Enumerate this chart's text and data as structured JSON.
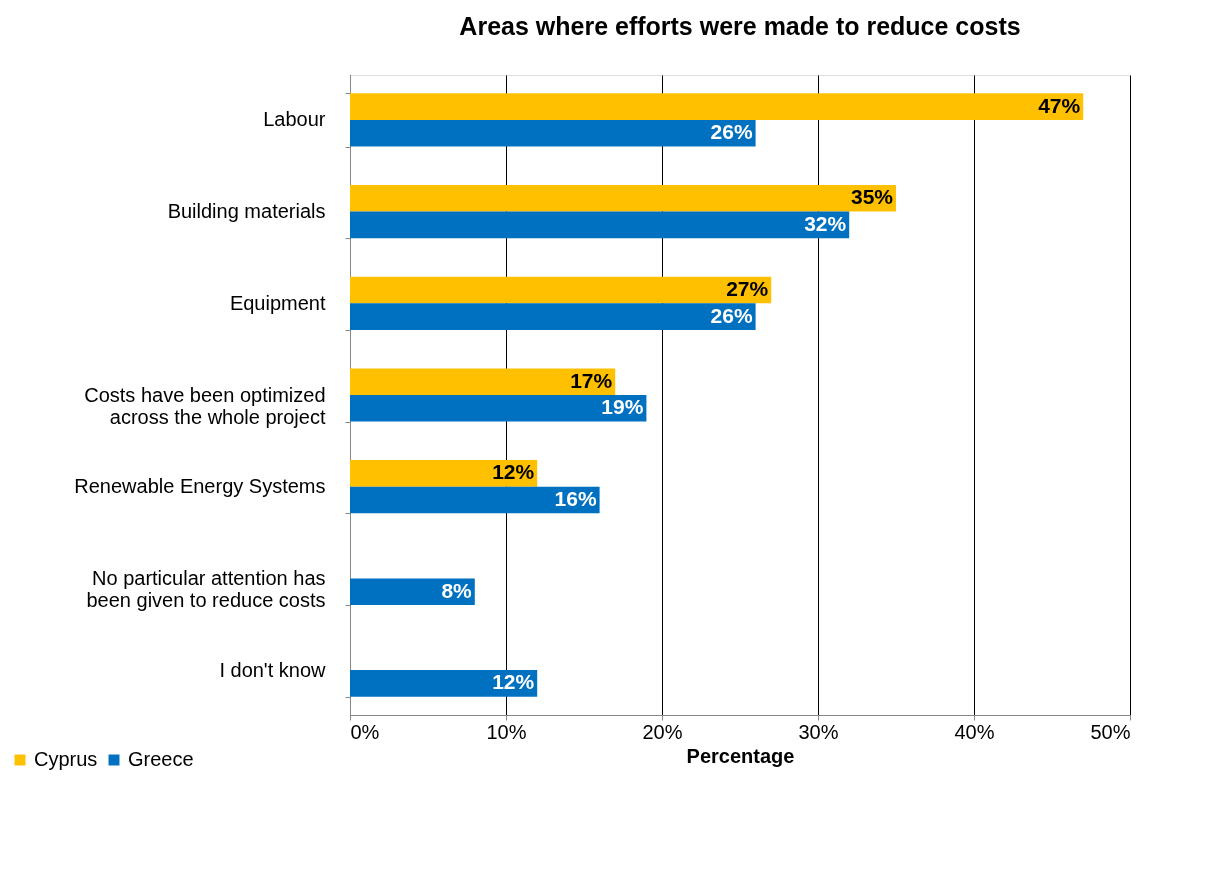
{
  "chart_data": {
    "type": "bar",
    "orientation": "horizontal",
    "title": "Areas where efforts were made to reduce costs",
    "xlabel": "Percentage",
    "categories": [
      "Labour",
      "Building materials",
      "Equipment",
      "Costs have been optimized across the whole project",
      "Renewable Energy Systems",
      "No particular attention has been given to reduce costs",
      "I don't know"
    ],
    "series": [
      {
        "name": "Cyprus",
        "color": "#ffc000",
        "values": [
          47,
          35,
          27,
          17,
          12,
          null,
          null
        ],
        "value_labels": [
          "47%",
          "35%",
          "27%",
          "17%",
          "12%",
          null,
          null
        ]
      },
      {
        "name": "Greece",
        "color": "#0070c0",
        "values": [
          26,
          32,
          26,
          19,
          16,
          8,
          12
        ],
        "value_labels": [
          "26%",
          "32%",
          "26%",
          "19%",
          "16%",
          "8%",
          "12%"
        ]
      }
    ],
    "xlim": [
      0,
      50
    ],
    "xticks": [
      {
        "value": 0,
        "label": "0%"
      },
      {
        "value": 10,
        "label": "10%"
      },
      {
        "value": 20,
        "label": "20%"
      },
      {
        "value": 30,
        "label": "30%"
      },
      {
        "value": 40,
        "label": "40%"
      },
      {
        "value": 50,
        "label": "50%"
      }
    ],
    "grid": "x",
    "legend": "bottom left",
    "data_labels": true
  }
}
